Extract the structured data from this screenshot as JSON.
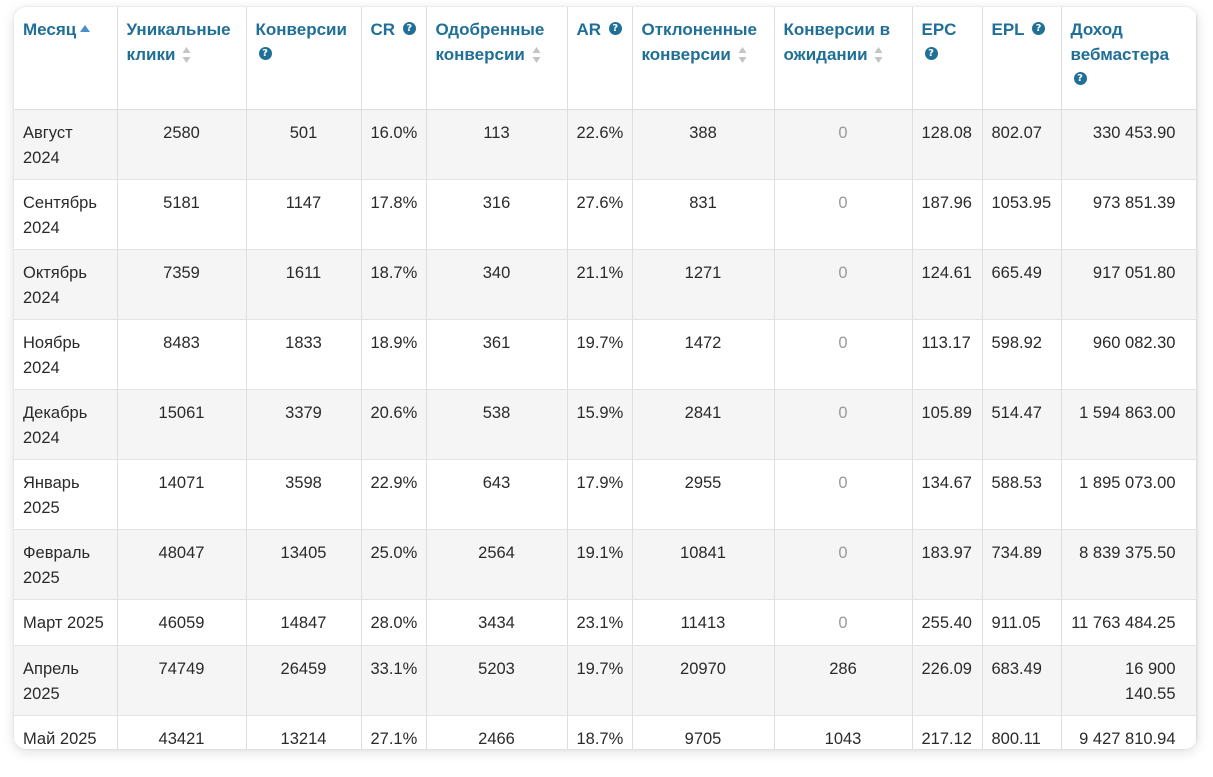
{
  "table": {
    "headers": {
      "month": "Месяц",
      "clicks": "Уникальные клики",
      "conversions": "Конверсии",
      "cr": "CR",
      "approved": "Одобренные конверсии",
      "ar": "AR",
      "rejected": "Отклоненные конверсии",
      "pending": "Конверсии в ожидании",
      "epc": "EPC",
      "epl": "EPL",
      "income": "Доход вебмастера"
    },
    "rows": [
      {
        "month": "Август 2024",
        "clicks": "2580",
        "conversions": "501",
        "cr": "16.0%",
        "approved": "113",
        "ar": "22.6%",
        "rejected": "388",
        "pending": "0",
        "epc": "128.08",
        "epl": "802.07",
        "income": "330 453.90"
      },
      {
        "month": "Сентябрь 2024",
        "clicks": "5181",
        "conversions": "1147",
        "cr": "17.8%",
        "approved": "316",
        "ar": "27.6%",
        "rejected": "831",
        "pending": "0",
        "epc": "187.96",
        "epl": "1053.95",
        "income": "973 851.39"
      },
      {
        "month": "Октябрь 2024",
        "clicks": "7359",
        "conversions": "1611",
        "cr": "18.7%",
        "approved": "340",
        "ar": "21.1%",
        "rejected": "1271",
        "pending": "0",
        "epc": "124.61",
        "epl": "665.49",
        "income": "917 051.80"
      },
      {
        "month": "Ноябрь 2024",
        "clicks": "8483",
        "conversions": "1833",
        "cr": "18.9%",
        "approved": "361",
        "ar": "19.7%",
        "rejected": "1472",
        "pending": "0",
        "epc": "113.17",
        "epl": "598.92",
        "income": "960 082.30"
      },
      {
        "month": "Декабрь 2024",
        "clicks": "15061",
        "conversions": "3379",
        "cr": "20.6%",
        "approved": "538",
        "ar": "15.9%",
        "rejected": "2841",
        "pending": "0",
        "epc": "105.89",
        "epl": "514.47",
        "income": "1 594 863.00"
      },
      {
        "month": "Январь 2025",
        "clicks": "14071",
        "conversions": "3598",
        "cr": "22.9%",
        "approved": "643",
        "ar": "17.9%",
        "rejected": "2955",
        "pending": "0",
        "epc": "134.67",
        "epl": "588.53",
        "income": "1 895 073.00"
      },
      {
        "month": "Февраль 2025",
        "clicks": "48047",
        "conversions": "13405",
        "cr": "25.0%",
        "approved": "2564",
        "ar": "19.1%",
        "rejected": "10841",
        "pending": "0",
        "epc": "183.97",
        "epl": "734.89",
        "income": "8 839 375.50"
      },
      {
        "month": "Март 2025",
        "clicks": "46059",
        "conversions": "14847",
        "cr": "28.0%",
        "approved": "3434",
        "ar": "23.1%",
        "rejected": "11413",
        "pending": "0",
        "epc": "255.40",
        "epl": "911.05",
        "income": "11 763 484.25"
      },
      {
        "month": "Апрель 2025",
        "clicks": "74749",
        "conversions": "26459",
        "cr": "33.1%",
        "approved": "5203",
        "ar": "19.7%",
        "rejected": "20970",
        "pending": "286",
        "epc": "226.09",
        "epl": "683.49",
        "income": "16 900 140.55"
      },
      {
        "month": "Май 2025",
        "clicks": "43421",
        "conversions": "13214",
        "cr": "27.1%",
        "approved": "2466",
        "ar": "18.7%",
        "rejected": "9705",
        "pending": "1043",
        "epc": "217.12",
        "epl": "800.11",
        "income": "9 427 810.94"
      }
    ]
  },
  "colors": {
    "header_text": "#1f6f97",
    "sort_asc": "#4a8fc7",
    "stripe": "#f5f5f5"
  },
  "icons": {
    "sort": "sort-icon",
    "help": "help-icon",
    "sort_asc": "sort-asc-icon"
  }
}
